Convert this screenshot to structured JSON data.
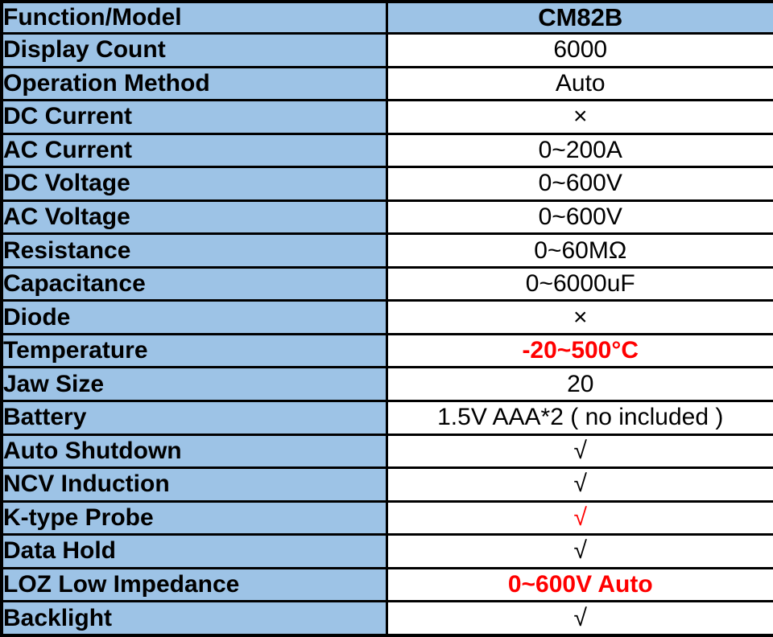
{
  "colors": {
    "header_bg": "#9DC3E6",
    "label_bg": "#9DC3E6",
    "value_bg": "#FFFFFF",
    "border": "#000000",
    "text": "#000000",
    "highlight_red": "#FF0000"
  },
  "table": {
    "header": {
      "label": "Function/Model",
      "model": "CM82B"
    },
    "rows": [
      {
        "label": "Display Count",
        "value": "6000",
        "color": "black",
        "bold": false
      },
      {
        "label": "Operation Method",
        "value": "Auto",
        "color": "black",
        "bold": false
      },
      {
        "label": "DC Current",
        "value": "×",
        "color": "black",
        "bold": false
      },
      {
        "label": "AC Current",
        "value": "0~200A",
        "color": "black",
        "bold": false
      },
      {
        "label": "DC Voltage",
        "value": "0~600V",
        "color": "black",
        "bold": false
      },
      {
        "label": "AC Voltage",
        "value": "0~600V",
        "color": "black",
        "bold": false
      },
      {
        "label": "Resistance",
        "value": "0~60MΩ",
        "color": "black",
        "bold": false
      },
      {
        "label": "Capacitance",
        "value": "0~6000uF",
        "color": "black",
        "bold": false
      },
      {
        "label": "Diode",
        "value": "×",
        "color": "black",
        "bold": false
      },
      {
        "label": "Temperature",
        "value": "-20~500°C",
        "color": "red",
        "bold": true
      },
      {
        "label": "Jaw Size",
        "value": "20",
        "color": "black",
        "bold": false
      },
      {
        "label": "Battery",
        "value": "1.5V AAA*2 ( no included )",
        "color": "black",
        "bold": false
      },
      {
        "label": "Auto Shutdown",
        "value": "√",
        "color": "black",
        "bold": false
      },
      {
        "label": "NCV Induction",
        "value": "√",
        "color": "black",
        "bold": false
      },
      {
        "label": "K-type Probe",
        "value": "√",
        "color": "red",
        "bold": false
      },
      {
        "label": "Data Hold",
        "value": "√",
        "color": "black",
        "bold": false
      },
      {
        "label": "LOZ Low Impedance",
        "value": "0~600V Auto",
        "color": "red",
        "bold": true
      },
      {
        "label": "Backlight",
        "value": "√",
        "color": "black",
        "bold": false
      }
    ]
  },
  "chart_data": {
    "type": "table",
    "title": "CM82B clamp meter specifications",
    "columns": [
      "Function/Model",
      "CM82B"
    ],
    "rows": [
      [
        "Display Count",
        "6000"
      ],
      [
        "Operation Method",
        "Auto"
      ],
      [
        "DC Current",
        "×"
      ],
      [
        "AC Current",
        "0~200A"
      ],
      [
        "DC Voltage",
        "0~600V"
      ],
      [
        "AC Voltage",
        "0~600V"
      ],
      [
        "Resistance",
        "0~60MΩ"
      ],
      [
        "Capacitance",
        "0~6000uF"
      ],
      [
        "Diode",
        "×"
      ],
      [
        "Temperature",
        "-20~500°C"
      ],
      [
        "Jaw Size",
        "20"
      ],
      [
        "Battery",
        "1.5V AAA*2 ( no included )"
      ],
      [
        "Auto Shutdown",
        "√"
      ],
      [
        "NCV Induction",
        "√"
      ],
      [
        "K-type Probe",
        "√"
      ],
      [
        "Data Hold",
        "√"
      ],
      [
        "LOZ Low Impedance",
        "0~600V Auto"
      ],
      [
        "Backlight",
        "√"
      ]
    ]
  }
}
